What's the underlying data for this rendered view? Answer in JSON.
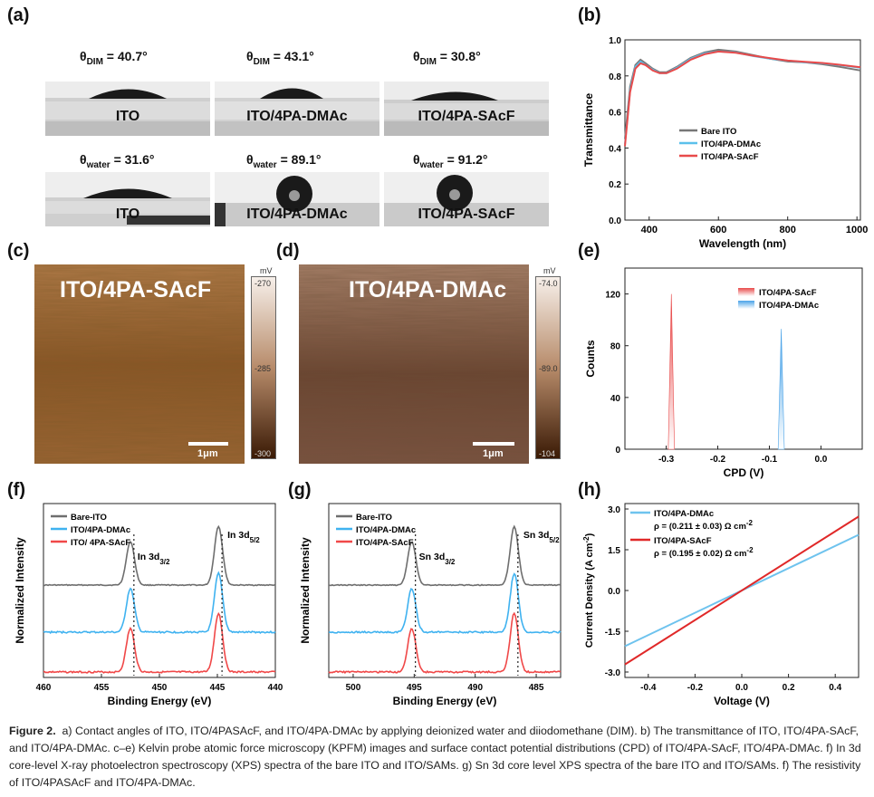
{
  "panel_labels": {
    "a": "(a)",
    "b": "(b)",
    "c": "(c)",
    "d": "(d)",
    "e": "(e)",
    "f": "(f)",
    "g": "(g)",
    "h": "(h)"
  },
  "contact_angles": {
    "dim_row": [
      {
        "prefix": "θ",
        "sub": "DIM",
        "value": " = 40.7°",
        "substrate": "ITO"
      },
      {
        "prefix": "θ",
        "sub": "DIM",
        "value": " = 43.1°",
        "substrate": "ITO/4PA-DMAc"
      },
      {
        "prefix": "θ",
        "sub": "DIM",
        "value": " = 30.8°",
        "substrate": "ITO/4PA-SAcF"
      }
    ],
    "water_row": [
      {
        "prefix": "θ",
        "sub": "water",
        "value": " = 31.6°",
        "substrate": "ITO"
      },
      {
        "prefix": "θ",
        "sub": "water",
        "value": " = 89.1°",
        "substrate": "ITO/4PA-DMAc"
      },
      {
        "prefix": "θ",
        "sub": "water",
        "value": " = 91.2°",
        "substrate": "ITO/4PA-SAcF"
      }
    ]
  },
  "afm": {
    "c": {
      "title": "ITO/4PA-SAcF",
      "scale": "1μm",
      "unit": "mV",
      "top": "-270",
      "mid": "-285",
      "bottom": "-300"
    },
    "d": {
      "title": "ITO/4PA-DMAc",
      "scale": "1μm",
      "unit": "mV",
      "top": "-74.0",
      "mid": "-89.0",
      "bottom": "-104"
    }
  },
  "chart_data": [
    {
      "id": "b",
      "type": "line",
      "xlabel": "Wavelength (nm)",
      "ylabel": "Transmittance",
      "xlim": [
        330,
        1010
      ],
      "ylim": [
        0,
        1.0
      ],
      "xticks": [
        400,
        600,
        800,
        1000
      ],
      "yticks": [
        0.0,
        0.2,
        0.4,
        0.6,
        0.8,
        1.0
      ],
      "ytick_labels": [
        "0.0",
        "0.2",
        "0.4",
        "0.6",
        "0.8",
        "1.0"
      ],
      "legend": "center-left",
      "series": [
        {
          "name": "Bare ITO",
          "color": "#777777",
          "x": [
            330,
            345,
            360,
            375,
            390,
            410,
            430,
            450,
            480,
            520,
            560,
            600,
            650,
            700,
            750,
            800,
            850,
            900,
            950,
            1010
          ],
          "y": [
            0.45,
            0.74,
            0.86,
            0.89,
            0.87,
            0.84,
            0.82,
            0.82,
            0.85,
            0.9,
            0.93,
            0.945,
            0.935,
            0.915,
            0.895,
            0.88,
            0.875,
            0.865,
            0.85,
            0.83
          ]
        },
        {
          "name": "ITO/4PA-DMAc",
          "color": "#5bc0eb",
          "x": [
            330,
            345,
            360,
            375,
            390,
            410,
            430,
            450,
            480,
            520,
            560,
            600,
            650,
            700,
            750,
            800,
            850,
            900,
            950,
            1010
          ],
          "y": [
            0.42,
            0.72,
            0.85,
            0.88,
            0.86,
            0.835,
            0.815,
            0.815,
            0.845,
            0.895,
            0.925,
            0.935,
            0.93,
            0.91,
            0.895,
            0.885,
            0.875,
            0.87,
            0.86,
            0.845
          ]
        },
        {
          "name": "ITO/4PA-SAcF",
          "color": "#e84a4a",
          "x": [
            330,
            345,
            360,
            375,
            390,
            410,
            430,
            450,
            480,
            520,
            560,
            600,
            650,
            700,
            750,
            800,
            850,
            900,
            950,
            1010
          ],
          "y": [
            0.41,
            0.71,
            0.84,
            0.87,
            0.86,
            0.83,
            0.815,
            0.815,
            0.84,
            0.89,
            0.92,
            0.935,
            0.928,
            0.912,
            0.898,
            0.885,
            0.878,
            0.872,
            0.862,
            0.848
          ]
        }
      ]
    },
    {
      "id": "e",
      "type": "area",
      "xlabel": "CPD (V)",
      "ylabel": "Counts",
      "xlim": [
        -0.38,
        0.08
      ],
      "ylim": [
        0,
        140
      ],
      "xticks": [
        -0.3,
        -0.2,
        -0.1,
        0.0
      ],
      "xtick_labels": [
        "-0.3",
        "-0.2",
        "-0.1",
        "0.0"
      ],
      "yticks": [
        0,
        40,
        80,
        120
      ],
      "legend": "top-right",
      "series": [
        {
          "name": "ITO/4PA-SAcF",
          "color": "#e84a4a",
          "center": -0.29,
          "peak": 120,
          "halfwidth": 0.006
        },
        {
          "name": "ITO/4PA-DMAc",
          "color": "#4aa3e8",
          "center": -0.077,
          "peak": 93,
          "halfwidth": 0.006
        }
      ]
    },
    {
      "id": "f",
      "type": "line",
      "xlabel": "Binding Energy (eV)",
      "ylabel": "Normalized Intensity",
      "xlim": [
        460,
        440
      ],
      "xticks": [
        460,
        455,
        450,
        445,
        440
      ],
      "legend": "top-left",
      "annotations": [
        {
          "text": "In 3d",
          "sub": "3/2",
          "x": 452.2
        },
        {
          "text": "In 3d",
          "sub": "5/2",
          "x": 444.6
        }
      ],
      "vlines": [
        452.2,
        444.6
      ],
      "peaks": [
        452.5,
        444.9
      ],
      "series": [
        {
          "name": "Bare-ITO",
          "color": "#6e6e6e",
          "offset": 2.0
        },
        {
          "name": "ITO/4PA-DMAc",
          "color": "#3fb2f0",
          "offset": 1.0
        },
        {
          "name": "ITO/ 4PA-SAcF",
          "color": "#f04848",
          "offset": 0.0
        }
      ]
    },
    {
      "id": "g",
      "type": "line",
      "xlabel": "Binding Energy (eV)",
      "ylabel": "Normalized Intensity",
      "xlim": [
        502,
        483
      ],
      "xticks": [
        500,
        495,
        490,
        485
      ],
      "legend": "top-left",
      "annotations": [
        {
          "text": "Sn 3d",
          "sub": "3/2",
          "x": 494.9
        },
        {
          "text": "Sn 3d",
          "sub": "5/2",
          "x": 486.5
        }
      ],
      "vlines": [
        494.9,
        486.5
      ],
      "peaks": [
        495.2,
        486.8
      ],
      "series": [
        {
          "name": "Bare-ITO",
          "color": "#6e6e6e",
          "offset": 2.0
        },
        {
          "name": "ITO/4PA-DMAc",
          "color": "#3fb2f0",
          "offset": 1.0
        },
        {
          "name": "ITO/4PA-SAcF",
          "color": "#f04848",
          "offset": 0.0
        }
      ]
    },
    {
      "id": "h",
      "type": "line",
      "xlabel": "Voltage (V)",
      "ylabel": "Current Density (A cm",
      "ylabel_sup": "-2",
      "ylabel_end": ")",
      "xlim": [
        -0.5,
        0.5
      ],
      "ylim": [
        -3.2,
        3.2
      ],
      "xticks": [
        -0.4,
        -0.2,
        0.0,
        0.2,
        0.4
      ],
      "xtick_labels": [
        "-0.4",
        "-0.2",
        "0.0",
        "0.2",
        "0.4"
      ],
      "yticks": [
        -3.0,
        -1.5,
        0.0,
        1.5,
        3.0
      ],
      "ytick_labels": [
        "-3.0",
        "-1.5",
        "0.0",
        "1.5",
        "3.0"
      ],
      "legend": "top-left",
      "series": [
        {
          "name": "ITO/4PA-DMAc",
          "color": "#6ec3ee",
          "resistivity": "ρ = (0.211 ± 0.03) Ω cm",
          "res_sup": "-2",
          "x": [
            -0.5,
            0.5
          ],
          "y": [
            -2.05,
            2.05
          ]
        },
        {
          "name": "ITO/4PA-SAcF",
          "color": "#e02828",
          "resistivity": "ρ = (0.195 ± 0.02) Ω cm",
          "res_sup": "-2",
          "x": [
            -0.5,
            0.5
          ],
          "y": [
            -2.72,
            2.72
          ]
        }
      ]
    }
  ],
  "caption": {
    "label": "Figure 2.",
    "text": "a) Contact angles of ITO, ITO/4PASAcF, and ITO/4PA-DMAc by applying deionized water and diiodomethane (DIM). b) The transmittance of ITO, ITO/4PA-SAcF, and ITO/4PA-DMAc. c–e) Kelvin probe atomic force microscopy (KPFM) images and surface contact potential distributions (CPD) of ITO/4PA-SAcF, ITO/4PA-DMAc. f) In 3d core-level X-ray photoelectron spectroscopy (XPS) spectra of the bare ITO and ITO/SAMs. g) Sn 3d core level XPS spectra of the bare ITO and ITO/SAMs. f) The resistivity of ITO/4PASAcF and ITO/4PA-DMAc."
  }
}
